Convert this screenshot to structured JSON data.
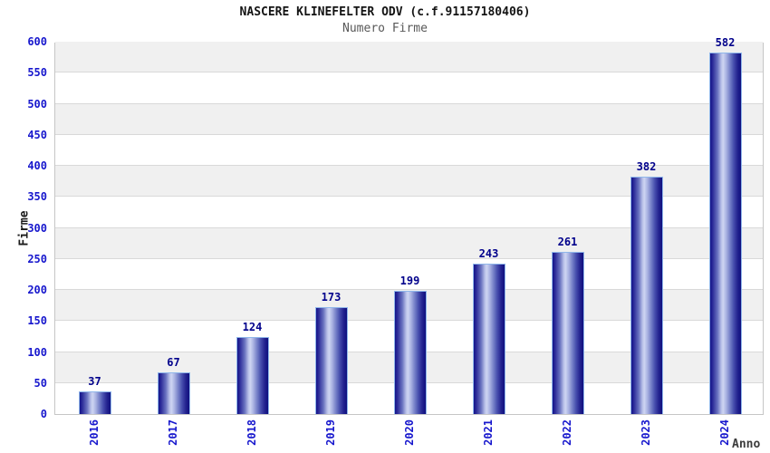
{
  "header": {
    "title": "NASCERE KLINEFELTER ODV (c.f.91157180406)",
    "subtitle": "Numero Firme"
  },
  "chart_data": {
    "type": "bar",
    "title": "NASCERE KLINEFELTER ODV (c.f.91157180406)",
    "subtitle": "Numero Firme",
    "xlabel": "Anno",
    "ylabel": "Firme",
    "categories": [
      "2016",
      "2017",
      "2018",
      "2019",
      "2020",
      "2021",
      "2022",
      "2023",
      "2024"
    ],
    "values": [
      37,
      67,
      124,
      173,
      199,
      243,
      261,
      382,
      582
    ],
    "ylim": [
      0,
      600
    ],
    "ytick_step": 50,
    "yticks": [
      0,
      50,
      100,
      150,
      200,
      250,
      300,
      350,
      400,
      450,
      500,
      550,
      600
    ],
    "grid": true,
    "legend": "none",
    "colors": {
      "bar_dark": "#13138a",
      "bar_highlight": "#ced5f2",
      "bar_border": "#8fb6ea",
      "tick_label": "#1717cd",
      "value_label": "#00008b",
      "band": "#f0f0f0",
      "gridline": "#d9d9d9",
      "plot_border": "#c6c6c6",
      "title": "#141414",
      "subtitle": "#585858"
    }
  }
}
